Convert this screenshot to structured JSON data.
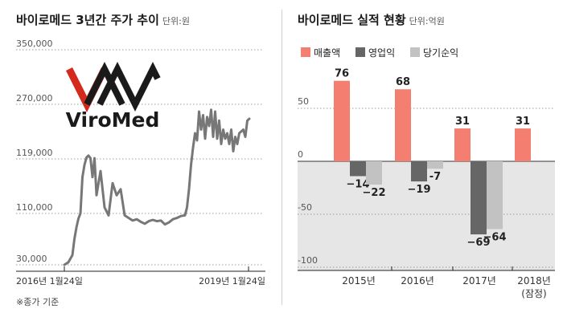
{
  "line_chart": {
    "title": "바이로메드 3년간 주가 추이",
    "unit": "단위:원",
    "note": "※종가 기준",
    "logo": {
      "text": "ViroMed",
      "color": "#d42a1e"
    },
    "line_color": "#777777"
  },
  "bar_chart": {
    "title": "바이로메드 실적 현황",
    "unit": "단위:억원",
    "colors": {
      "revenue": "#f47e6f",
      "operating": "#666666",
      "net": "#c2c2c2",
      "negative_bg": "#e6e6e6"
    }
  },
  "chart_data": [
    {
      "type": "line",
      "title": "바이로메드 3년간 주가 추이",
      "ylabel": "",
      "y_ticks": [
        "350,000",
        "270,000",
        "119,000",
        "110,000",
        "30,000"
      ],
      "x_ticks": [
        "2016년 1월24일",
        "2019년 1월24일"
      ],
      "grid": true,
      "series": [
        {
          "values": [
            [
              0.0,
              30000
            ],
            [
              0.02,
              34000
            ],
            [
              0.04,
              45000
            ],
            [
              0.05,
              70000
            ],
            [
              0.06,
              88000
            ],
            [
              0.07,
              102000
            ],
            [
              0.08,
              110000
            ],
            [
              0.09,
              116000
            ],
            [
              0.1,
              118000
            ],
            [
              0.11,
              123000
            ],
            [
              0.12,
              128000
            ],
            [
              0.13,
              121000
            ],
            [
              0.14,
              116000
            ],
            [
              0.15,
              121000
            ],
            [
              0.16,
              113000
            ],
            [
              0.18,
              117000
            ],
            [
              0.2,
              111000
            ],
            [
              0.22,
              107000
            ],
            [
              0.24,
              115000
            ],
            [
              0.26,
              113000
            ],
            [
              0.28,
              114000
            ],
            [
              0.3,
              107000
            ],
            [
              0.32,
              103000
            ],
            [
              0.34,
              99000
            ],
            [
              0.36,
              101000
            ],
            [
              0.38,
              97000
            ],
            [
              0.4,
              94000
            ],
            [
              0.42,
              98000
            ],
            [
              0.44,
              100000
            ],
            [
              0.46,
              98000
            ],
            [
              0.48,
              99000
            ],
            [
              0.5,
              93000
            ],
            [
              0.52,
              96000
            ],
            [
              0.54,
              101000
            ],
            [
              0.56,
              103000
            ],
            [
              0.58,
              106000
            ],
            [
              0.6,
              107000
            ],
            [
              0.61,
              111000
            ],
            [
              0.62,
              114000
            ],
            [
              0.63,
              118000
            ],
            [
              0.64,
              150000
            ],
            [
              0.65,
              190000
            ],
            [
              0.66,
              170000
            ],
            [
              0.67,
              250000
            ],
            [
              0.68,
              200000
            ],
            [
              0.69,
              240000
            ],
            [
              0.7,
              175000
            ],
            [
              0.71,
              235000
            ],
            [
              0.72,
              210000
            ],
            [
              0.73,
              255000
            ],
            [
              0.74,
              180000
            ],
            [
              0.75,
              250000
            ],
            [
              0.76,
              175000
            ],
            [
              0.77,
              225000
            ],
            [
              0.78,
              160000
            ],
            [
              0.79,
              200000
            ],
            [
              0.8,
              175000
            ],
            [
              0.81,
              190000
            ],
            [
              0.82,
              160000
            ],
            [
              0.83,
              200000
            ],
            [
              0.84,
              140000
            ],
            [
              0.85,
              180000
            ],
            [
              0.86,
              160000
            ],
            [
              0.87,
              190000
            ],
            [
              0.88,
              195000
            ],
            [
              0.89,
              200000
            ],
            [
              0.9,
              180000
            ],
            [
              0.91,
              225000
            ],
            [
              0.92,
              230000
            ]
          ]
        }
      ]
    },
    {
      "type": "bar",
      "title": "바이로메드 실적 현황",
      "categories": [
        "2015년",
        "2016년",
        "2017년",
        "2018년"
      ],
      "category_sub": [
        "",
        "",
        "",
        "(잠정)"
      ],
      "series": [
        {
          "name": "매출액",
          "values": [
            76,
            68,
            31,
            31
          ],
          "labels": [
            "76",
            "68",
            "31",
            "31"
          ]
        },
        {
          "name": "영업익",
          "values": [
            -14,
            -19,
            -69,
            null
          ],
          "labels": [
            "−14",
            "−19",
            "−69",
            ""
          ]
        },
        {
          "name": "당기순익",
          "values": [
            -22,
            -7,
            -64,
            null
          ],
          "labels": [
            "−22",
            "-7",
            "−64",
            ""
          ]
        }
      ],
      "y_ticks": [
        50,
        0,
        -50,
        -100
      ],
      "ylim": [
        -100,
        95
      ],
      "legend": "top-left",
      "grid": true
    }
  ]
}
